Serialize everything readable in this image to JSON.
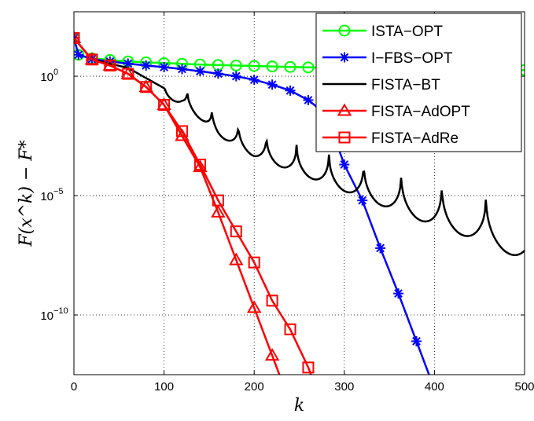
{
  "chart_data": {
    "type": "line",
    "xlabel": "k",
    "ylabel": "F(x^k) − F*",
    "xlim": [
      0,
      500
    ],
    "ylim_log10": [
      -12.5,
      2.7
    ],
    "yscale": "log",
    "grid": true,
    "grid_style": "dotted",
    "legend_position": "top-right",
    "x_ticks": [
      0,
      100,
      200,
      300,
      400,
      500
    ],
    "x_tick_labels": [
      "0",
      "100",
      "200",
      "300",
      "400",
      "500"
    ],
    "y_ticks_log10": [
      0,
      -5,
      -10
    ],
    "y_tick_labels": [
      {
        "base": "10",
        "exp": "0"
      },
      {
        "base": "10",
        "exp": "−5"
      },
      {
        "base": "10",
        "exp": "−10"
      }
    ],
    "series": [
      {
        "name": "ISTA−OPT",
        "color": "#00ff00",
        "marker": "circle",
        "x": [
          0,
          5,
          20,
          40,
          60,
          80,
          100,
          120,
          140,
          160,
          180,
          200,
          220,
          240,
          260,
          280,
          300,
          320,
          340,
          360,
          380,
          400,
          420,
          440,
          460,
          480,
          500
        ],
        "y_log10": [
          1.6,
          0.9,
          0.75,
          0.68,
          0.62,
          0.58,
          0.55,
          0.52,
          0.49,
          0.47,
          0.45,
          0.43,
          0.41,
          0.39,
          0.37,
          0.36,
          0.35,
          0.34,
          0.33,
          0.32,
          0.31,
          0.3,
          0.29,
          0.28,
          0.27,
          0.27,
          0.26
        ]
      },
      {
        "name": "I−FBS−OPT",
        "color": "#0000ff",
        "marker": "star",
        "x": [
          0,
          5,
          20,
          40,
          60,
          80,
          100,
          120,
          140,
          160,
          180,
          200,
          220,
          240,
          260,
          280,
          300,
          320,
          340,
          360,
          380,
          400
        ],
        "y_log10": [
          1.6,
          0.9,
          0.72,
          0.62,
          0.53,
          0.45,
          0.38,
          0.3,
          0.21,
          0.11,
          0.0,
          -0.15,
          -0.35,
          -0.6,
          -1.0,
          -1.6,
          -3.7,
          -5.2,
          -7.2,
          -9.1,
          -11.1,
          -13.1
        ]
      },
      {
        "name": "FISTA−BT",
        "color": "#000000",
        "marker": "none",
        "oscillating": true,
        "x": [
          0,
          20,
          60,
          100,
          120,
          140,
          160,
          200,
          250,
          300,
          350,
          400,
          450,
          500
        ],
        "y_log10": [
          1.6,
          0.7,
          0.35,
          -0.5,
          -0.65,
          -1.2,
          -1.8,
          -2.5,
          -3.0,
          -3.5,
          -4.0,
          -4.5,
          -4.9,
          -5.5
        ]
      },
      {
        "name": "FISTA−AdOPT",
        "color": "#ff0000",
        "marker": "triangle",
        "x": [
          0,
          20,
          40,
          60,
          80,
          100,
          120,
          140,
          160,
          180,
          200,
          220,
          240
        ],
        "y_log10": [
          1.6,
          0.7,
          0.45,
          0.1,
          -0.45,
          -1.2,
          -2.5,
          -3.8,
          -5.7,
          -7.7,
          -9.7,
          -11.7,
          -13.7
        ]
      },
      {
        "name": "FISTA−AdRe",
        "color": "#ff0000",
        "marker": "square",
        "x": [
          0,
          20,
          40,
          60,
          80,
          100,
          120,
          140,
          160,
          180,
          200,
          220,
          240,
          260,
          280
        ],
        "y_log10": [
          1.6,
          0.7,
          0.45,
          0.1,
          -0.45,
          -1.2,
          -2.3,
          -3.7,
          -5.2,
          -6.5,
          -7.8,
          -9.4,
          -10.6,
          -12.2,
          -14.2
        ]
      }
    ]
  }
}
